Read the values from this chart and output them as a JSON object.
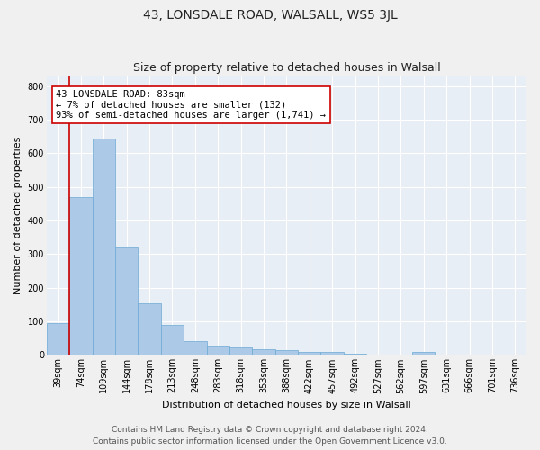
{
  "title_line1": "43, LONSDALE ROAD, WALSALL, WS5 3JL",
  "title_line2": "Size of property relative to detached houses in Walsall",
  "xlabel": "Distribution of detached houses by size in Walsall",
  "ylabel": "Number of detached properties",
  "footer_line1": "Contains HM Land Registry data © Crown copyright and database right 2024.",
  "footer_line2": "Contains public sector information licensed under the Open Government Licence v3.0.",
  "categories": [
    "39sqm",
    "74sqm",
    "109sqm",
    "144sqm",
    "178sqm",
    "213sqm",
    "248sqm",
    "283sqm",
    "318sqm",
    "353sqm",
    "388sqm",
    "422sqm",
    "457sqm",
    "492sqm",
    "527sqm",
    "562sqm",
    "597sqm",
    "631sqm",
    "666sqm",
    "701sqm",
    "736sqm"
  ],
  "values": [
    95,
    470,
    645,
    320,
    155,
    90,
    40,
    27,
    22,
    17,
    15,
    10,
    8,
    5,
    0,
    0,
    10,
    0,
    0,
    0,
    0
  ],
  "bar_color": "#adc9e8",
  "bar_edge_color": "#6aaad4",
  "marker_color": "#cc0000",
  "annotation_text": "43 LONSDALE ROAD: 83sqm\n← 7% of detached houses are smaller (132)\n93% of semi-detached houses are larger (1,741) →",
  "annotation_box_color": "#ffffff",
  "annotation_box_edge_color": "#cc0000",
  "ylim": [
    0,
    830
  ],
  "yticks": [
    0,
    100,
    200,
    300,
    400,
    500,
    600,
    700,
    800
  ],
  "plot_bg_color": "#e8eef5",
  "fig_bg_color": "#f0f0f0",
  "grid_color": "#ffffff",
  "title_fontsize": 10,
  "subtitle_fontsize": 9,
  "axis_label_fontsize": 8,
  "tick_fontsize": 7,
  "annotation_fontsize": 7.5,
  "footer_fontsize": 6.5
}
